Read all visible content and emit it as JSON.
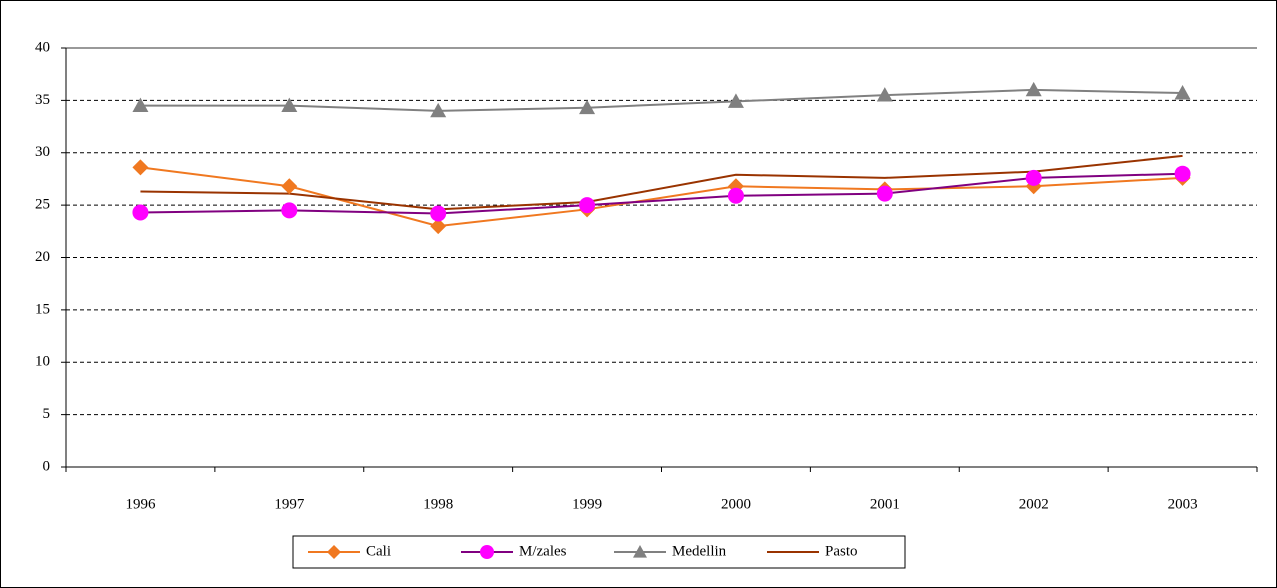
{
  "chart_data": {
    "type": "line",
    "categories": [
      "1996",
      "1997",
      "1998",
      "1999",
      "2000",
      "2001",
      "2002",
      "2003"
    ],
    "series": [
      {
        "name": "Cali",
        "color": "#f07820",
        "marker": "diamond",
        "values": [
          28.6,
          26.8,
          23.0,
          24.6,
          26.8,
          26.5,
          26.8,
          27.6
        ]
      },
      {
        "name": "M/zales",
        "color": "#800080",
        "marker_color": "#ff00ff",
        "marker": "circle",
        "values": [
          24.3,
          24.5,
          24.2,
          25.0,
          25.9,
          26.1,
          27.6,
          28.0
        ]
      },
      {
        "name": "Medellin",
        "color": "#808080",
        "marker": "triangle",
        "values": [
          34.5,
          34.5,
          34.0,
          34.3,
          34.9,
          35.5,
          36.0,
          35.7
        ]
      },
      {
        "name": "Pasto",
        "color": "#993300",
        "marker": "none",
        "values": [
          26.3,
          26.1,
          24.6,
          25.3,
          27.9,
          27.6,
          28.2,
          29.7
        ]
      }
    ],
    "ylim": [
      0,
      40
    ],
    "yticks": [
      0,
      5,
      10,
      15,
      20,
      25,
      30,
      35,
      40
    ],
    "grid": true,
    "legend": "bottom"
  }
}
